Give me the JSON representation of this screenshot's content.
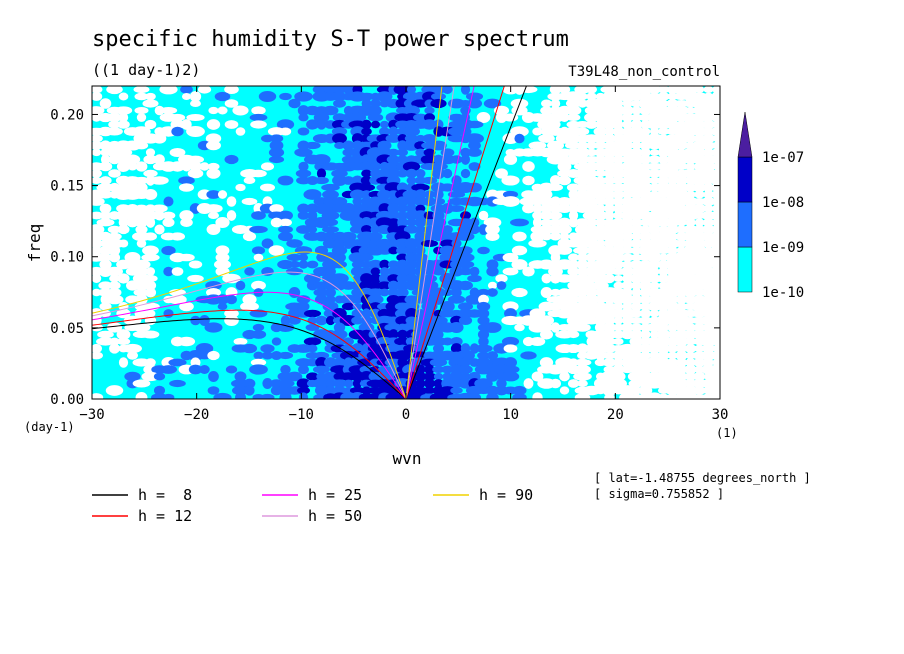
{
  "chart_data": {
    "type": "heatmap",
    "title": "specific humidity S-T power spectrum",
    "subtitle": "((1 day-1)2)",
    "run_label": "T39L48_non_control",
    "xlabel": "wvn",
    "ylabel": "freq",
    "x_unit_label": "(1)",
    "y_unit_label": "(day-1)",
    "xlim": [
      -30,
      30
    ],
    "ylim": [
      0,
      0.22
    ],
    "x_ticks": [
      -30,
      -20,
      -10,
      0,
      10,
      20,
      30
    ],
    "x_tick_labels": [
      "-30",
      "-20",
      "-10",
      "0",
      "10",
      "20",
      "30"
    ],
    "y_ticks": [
      0,
      0.05,
      0.1,
      0.15,
      0.2
    ],
    "y_tick_labels": [
      "0.00",
      "0.05",
      "0.10",
      "0.15",
      "0.20"
    ],
    "colorbar": {
      "levels": [
        "1e-10",
        "1e-09",
        "1e-08",
        "1e-07"
      ],
      "colors": [
        "#00ffff",
        "#1e6eff",
        "#0000c8",
        "#4b1ea0"
      ]
    },
    "annotations": [
      "[ lat=-1.48755 degrees_north ]",
      "[ sigma=0.755852 ]"
    ],
    "legend": {
      "placement": "bottom",
      "items": [
        {
          "text": "h =  8",
          "color": "#000000"
        },
        {
          "text": "h = 12",
          "color": "#ff0000"
        },
        {
          "text": "h = 25",
          "color": "#ff00ff"
        },
        {
          "text": "h = 50",
          "color": "#dd99dd"
        },
        {
          "text": "h = 90",
          "color": "#f0d200"
        }
      ]
    },
    "series": [
      {
        "name": "h =  8",
        "equivalent_depth": 8,
        "color": "#000000"
      },
      {
        "name": "h = 12",
        "equivalent_depth": 12,
        "color": "#ff0000"
      },
      {
        "name": "h = 25",
        "equivalent_depth": 25,
        "color": "#ff00ff"
      },
      {
        "name": "h = 50",
        "equivalent_depth": 50,
        "color": "#dd99dd"
      },
      {
        "name": "h = 90",
        "equivalent_depth": 90,
        "color": "#f0d200"
      }
    ]
  }
}
